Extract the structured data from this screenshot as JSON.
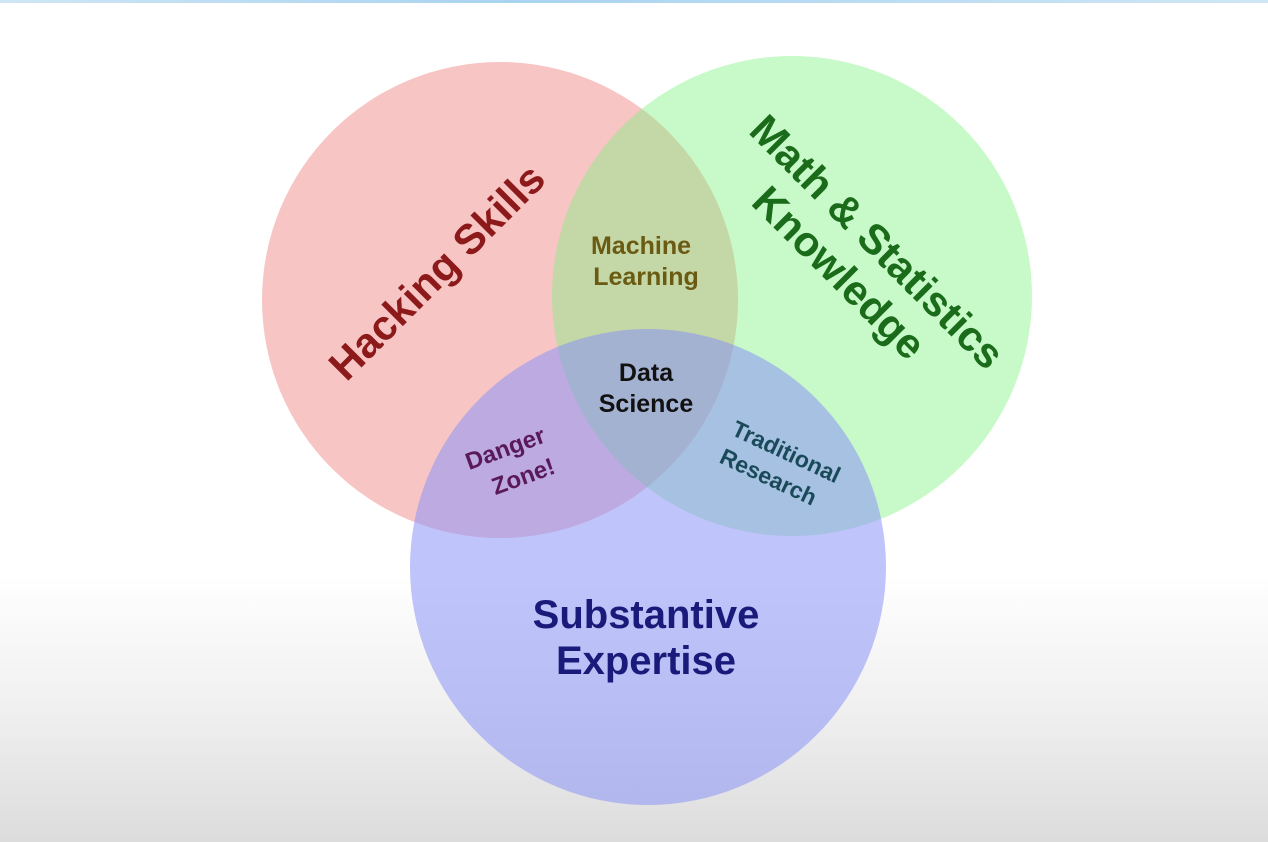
{
  "diagram": {
    "sets": {
      "hacking": {
        "label": "Hacking Skills",
        "fill": "#f7b3b3",
        "text_color": "#8c1a1a"
      },
      "math": {
        "label_line1": "Math & Statistics",
        "label_line2": "Knowledge",
        "fill": "#b3f7b3",
        "text_color": "#1a6b1a"
      },
      "substantive": {
        "label_line1": "Substantive",
        "label_line2": "Expertise",
        "fill": "#b3b8f7",
        "text_color": "#1a1a7a"
      }
    },
    "intersections": {
      "machine_learning": {
        "line1": "Machine",
        "line2": "Learning",
        "text_color": "#6b5a12"
      },
      "data_science": {
        "line1": "Data",
        "line2": "Science",
        "text_color": "#111111"
      },
      "danger_zone": {
        "line1": "Danger",
        "line2": "Zone!",
        "text_color": "#5a1a5a"
      },
      "traditional_research": {
        "line1": "Traditional",
        "line2": "Research",
        "text_color": "#1a4a5a"
      }
    }
  }
}
